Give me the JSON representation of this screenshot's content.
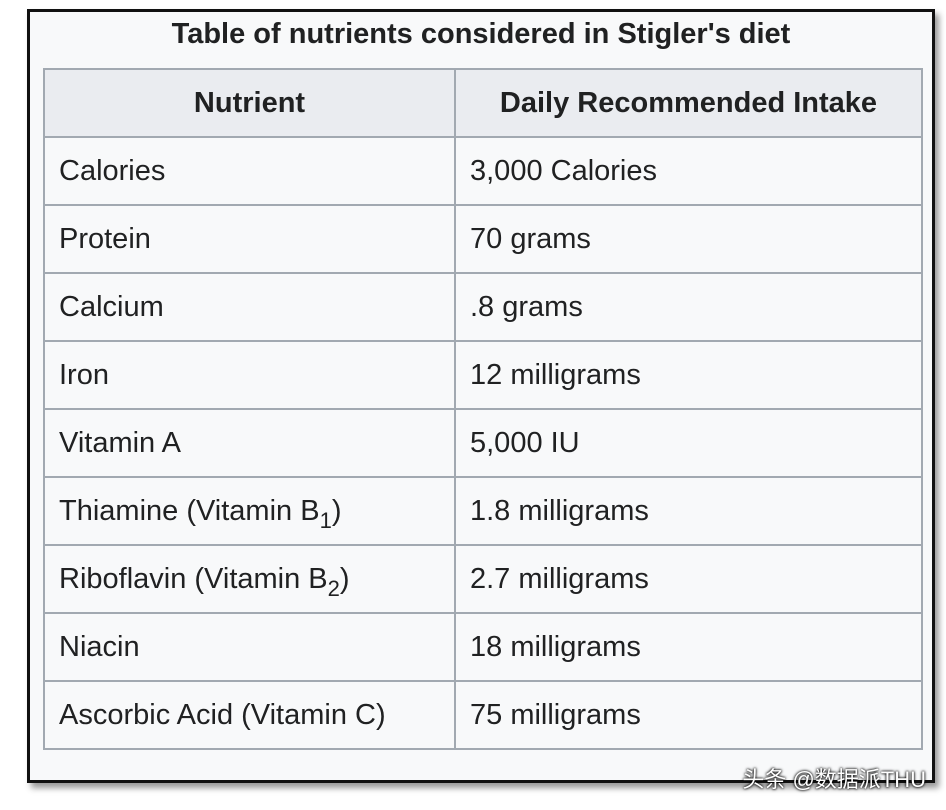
{
  "caption": "Table of nutrients considered in Stigler's diet",
  "table": {
    "header": [
      "Nutrient",
      "Daily Recommended Intake"
    ],
    "rows": [
      [
        "Calories",
        "3,000 Calories"
      ],
      [
        "Protein",
        "70 grams"
      ],
      [
        "Calcium",
        ".8 grams"
      ],
      [
        "Iron",
        "12 milligrams"
      ],
      [
        "Vitamin A",
        "5,000 IU"
      ],
      [
        {
          "text": "Thiamine (Vitamin B",
          "sub": "1",
          "after": ")"
        },
        "1.8 milligrams"
      ],
      [
        {
          "text": "Riboflavin (Vitamin B",
          "sub": "2",
          "after": ")"
        },
        "2.7 milligrams"
      ],
      [
        "Niacin",
        "18 milligrams"
      ],
      [
        "Ascorbic Acid (Vitamin C)",
        "75 milligrams"
      ]
    ]
  },
  "watermark": "头条 @数据派THU"
}
